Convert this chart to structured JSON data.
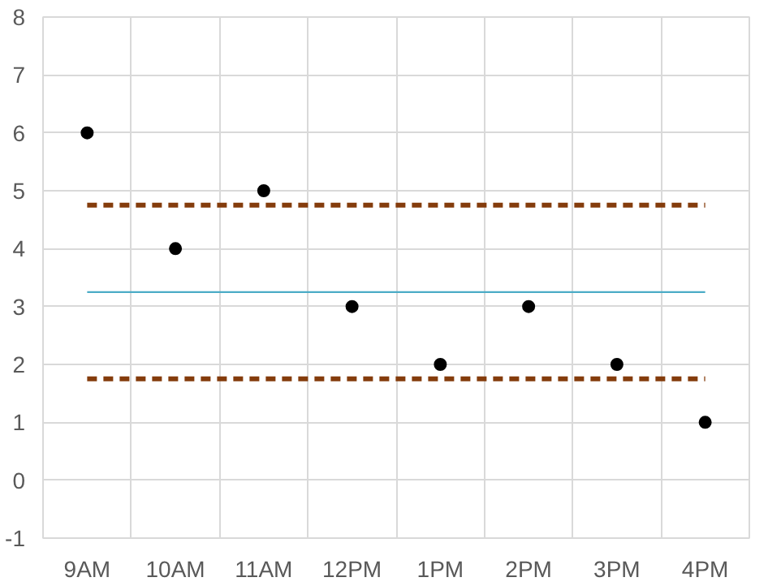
{
  "chart_data": {
    "type": "scatter",
    "categories": [
      "9AM",
      "10AM",
      "11AM",
      "12PM",
      "1PM",
      "2PM",
      "3PM",
      "4PM"
    ],
    "series": [
      {
        "color": "#000000",
        "values": [
          6,
          4,
          5,
          3,
          2,
          3,
          2,
          1
        ],
        "marker": "circle"
      },
      {
        "type": "line",
        "color": "#4bacc6",
        "values": [
          3.25,
          3.25,
          3.25,
          3.25,
          3.25,
          3.25,
          3.25,
          3.25
        ],
        "line_style": "solid"
      },
      {
        "type": "line",
        "color": "#843c0c",
        "values": [
          4.75,
          4.75,
          4.75,
          4.75,
          4.75,
          4.75,
          4.75,
          4.75
        ],
        "line_style": "dashed"
      },
      {
        "type": "line",
        "color": "#843c0c",
        "values": [
          1.75,
          1.75,
          1.75,
          1.75,
          1.75,
          1.75,
          1.75,
          1.75
        ],
        "line_style": "dashed"
      }
    ],
    "ylim": [
      -1,
      8
    ],
    "yticks": [
      -1,
      0,
      1,
      2,
      3,
      4,
      5,
      6,
      7,
      8
    ],
    "grid": true
  }
}
